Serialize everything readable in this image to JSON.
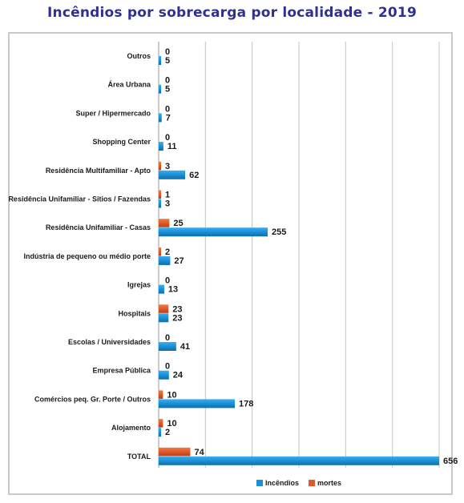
{
  "chart_data": {
    "type": "bar",
    "orientation": "horizontal",
    "title": "Incêndios por sobrecarga por localidade - 2019",
    "categories": [
      "Outros",
      "Área Urbana",
      "Super / Hipermercado",
      "Shopping Center",
      "Residência Multifamiliar - Apto",
      "Residência Unifamiliar - Sitios / Fazendas",
      "Residência Unifamiliar - Casas",
      "Indústria de pequeno ou médio porte",
      "Igrejas",
      "Hospitais",
      "Escolas / Universidades",
      "Empresa Pública",
      "Comércios peq. Gr. Porte / Outros",
      "Alojamento",
      "TOTAL"
    ],
    "series": [
      {
        "name": "Incêndios",
        "color": "#1b8fd6",
        "values": [
          5,
          5,
          7,
          11,
          62,
          3,
          255,
          27,
          13,
          23,
          41,
          24,
          178,
          2,
          656
        ]
      },
      {
        "name": "mortes",
        "color": "#e0592a",
        "values": [
          0,
          0,
          0,
          0,
          3,
          1,
          25,
          2,
          0,
          23,
          0,
          0,
          10,
          10,
          74
        ]
      }
    ],
    "xlim": [
      0,
      656
    ],
    "grid": true,
    "legend_position": "bottom"
  }
}
